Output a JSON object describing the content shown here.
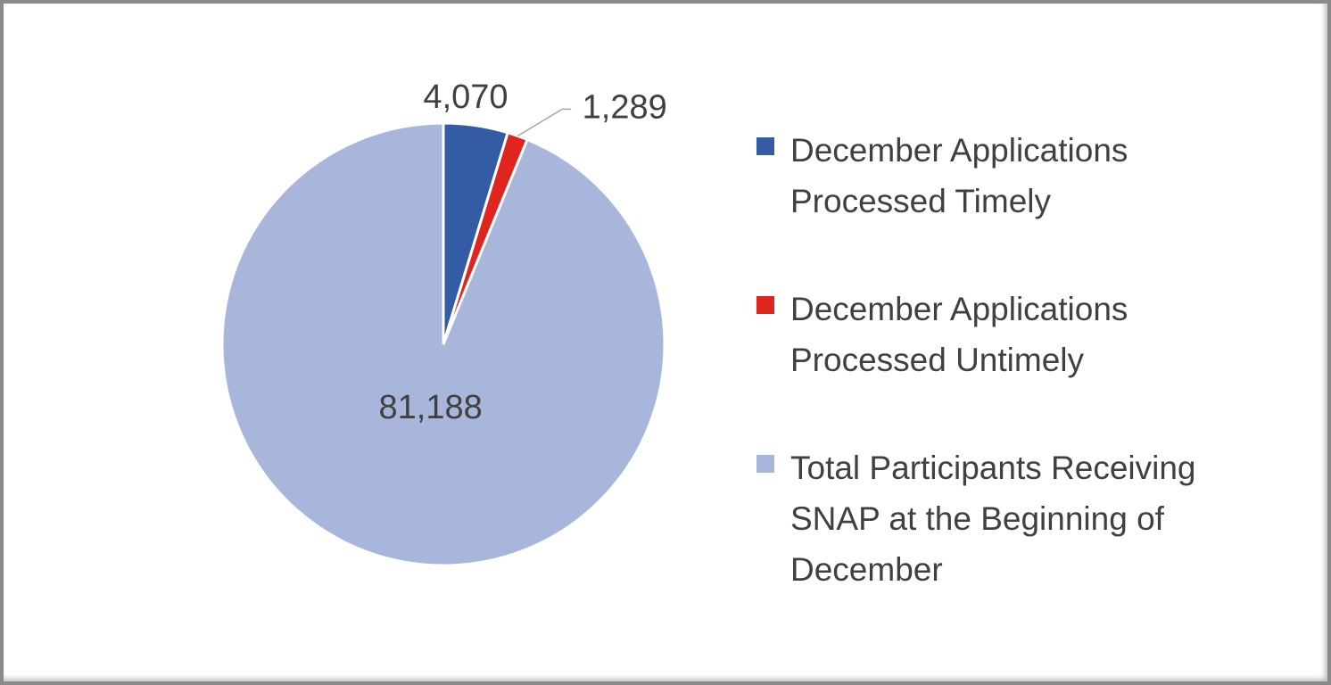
{
  "chart_data": {
    "type": "pie",
    "categories": [
      "December Applications Processed Timely",
      "December Applications Processed Untimely",
      "Total Participants Receiving SNAP at the Beginning of December"
    ],
    "values": [
      4070,
      1289,
      81188
    ],
    "value_labels": [
      "4,070",
      "1,289",
      "81,188"
    ],
    "colors": [
      "#335ca5",
      "#e0251f",
      "#a9b6db"
    ],
    "legend": "right"
  }
}
